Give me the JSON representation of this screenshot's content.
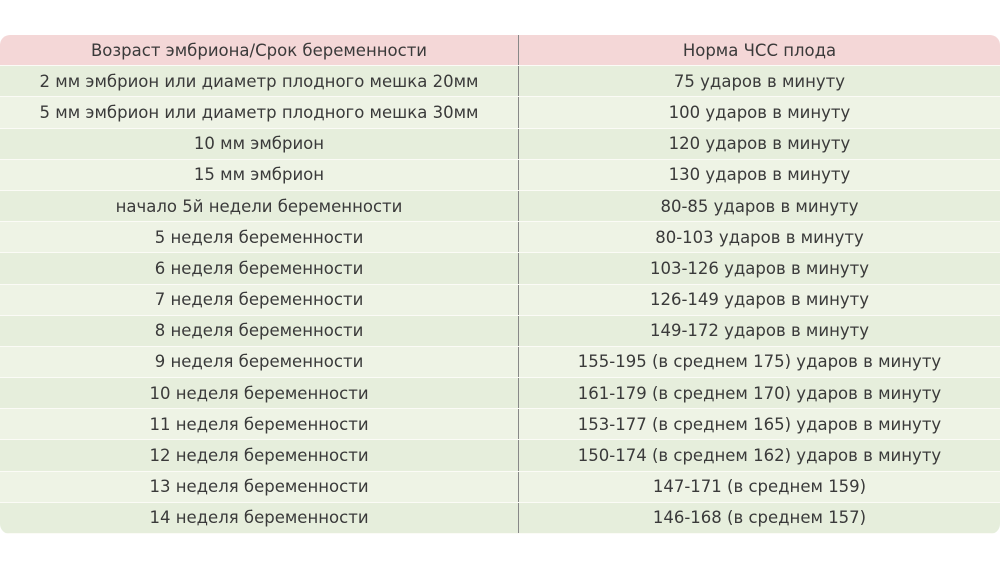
{
  "table": {
    "header": [
      "Возраст эмбриона/Срок беременности",
      "Норма ЧСС плода"
    ],
    "rows": [
      [
        "2 мм эмбрион или диаметр плодного мешка 20мм",
        "75 ударов в минуту"
      ],
      [
        "5 мм эмбрион или диаметр плодного мешка 30мм",
        "100 ударов в минуту"
      ],
      [
        "10 мм эмбрион",
        "120 ударов в минуту"
      ],
      [
        "15 мм эмбрион",
        "130 ударов в минуту"
      ],
      [
        "начало 5й недели беременности",
        "80-85 ударов в минуту"
      ],
      [
        "5 неделя беременности",
        "80-103 ударов в минуту"
      ],
      [
        "6 неделя беременности",
        "103-126 ударов в минуту"
      ],
      [
        "7 неделя беременности",
        "126-149 ударов в минуту"
      ],
      [
        "8 неделя беременности",
        "149-172 ударов в минуту"
      ],
      [
        "9 неделя беременности",
        "155-195 (в среднем 175) ударов в минуту"
      ],
      [
        "10 неделя беременности",
        "161-179 (в среднем 170) ударов в минуту"
      ],
      [
        "11 неделя беременности",
        "153-177 (в среднем 165) ударов в минуту"
      ],
      [
        "12 неделя беременности",
        "150-174 (в среднем 162) ударов в минуту"
      ],
      [
        "13 неделя беременности",
        "147-171 (в среднем 159)"
      ],
      [
        "14 неделя беременности",
        "146-168 (в среднем 157)"
      ]
    ]
  }
}
